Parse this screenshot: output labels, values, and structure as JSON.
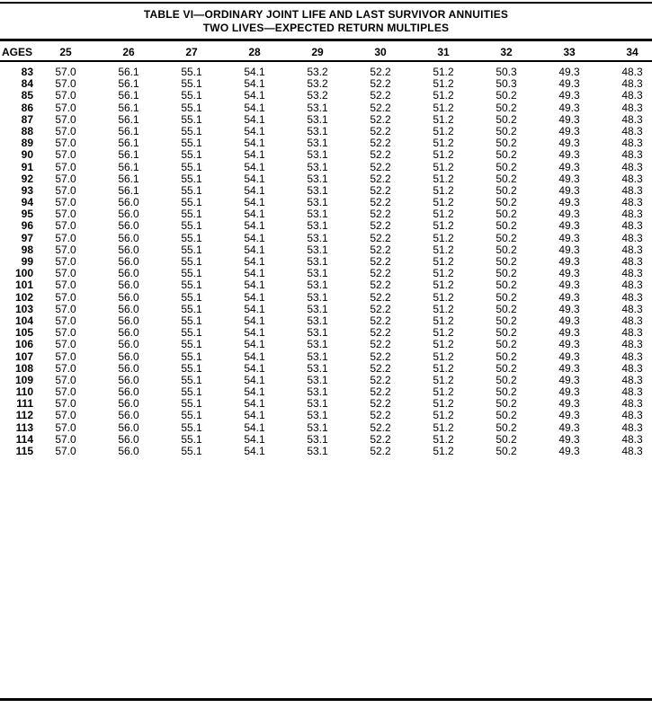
{
  "title": {
    "line1": "TABLE VI—ORDINARY JOINT LIFE AND LAST SURVIVOR ANNUITIES",
    "line2": "TWO LIVES—EXPECTED RETURN MULTIPLES"
  },
  "table": {
    "age_header": "AGES",
    "columns": [
      "25",
      "26",
      "27",
      "28",
      "29",
      "30",
      "31",
      "32",
      "33",
      "34"
    ],
    "rows": [
      {
        "age": "83",
        "values": [
          "57.0",
          "56.1",
          "55.1",
          "54.1",
          "53.2",
          "52.2",
          "51.2",
          "50.3",
          "49.3",
          "48.3"
        ]
      },
      {
        "age": "84",
        "values": [
          "57.0",
          "56.1",
          "55.1",
          "54.1",
          "53.2",
          "52.2",
          "51.2",
          "50.3",
          "49.3",
          "48.3"
        ]
      },
      {
        "age": "85",
        "values": [
          "57.0",
          "56.1",
          "55.1",
          "54.1",
          "53.2",
          "52.2",
          "51.2",
          "50.2",
          "49.3",
          "48.3"
        ]
      },
      {
        "age": "86",
        "values": [
          "57.0",
          "56.1",
          "55.1",
          "54.1",
          "53.1",
          "52.2",
          "51.2",
          "50.2",
          "49.3",
          "48.3"
        ]
      },
      {
        "age": "87",
        "values": [
          "57.0",
          "56.1",
          "55.1",
          "54.1",
          "53.1",
          "52.2",
          "51.2",
          "50.2",
          "49.3",
          "48.3"
        ]
      },
      {
        "age": "88",
        "values": [
          "57.0",
          "56.1",
          "55.1",
          "54.1",
          "53.1",
          "52.2",
          "51.2",
          "50.2",
          "49.3",
          "48.3"
        ]
      },
      {
        "age": "89",
        "values": [
          "57.0",
          "56.1",
          "55.1",
          "54.1",
          "53.1",
          "52.2",
          "51.2",
          "50.2",
          "49.3",
          "48.3"
        ]
      },
      {
        "age": "90",
        "values": [
          "57.0",
          "56.1",
          "55.1",
          "54.1",
          "53.1",
          "52.2",
          "51.2",
          "50.2",
          "49.3",
          "48.3"
        ]
      },
      {
        "age": "91",
        "values": [
          "57.0",
          "56.1",
          "55.1",
          "54.1",
          "53.1",
          "52.2",
          "51.2",
          "50.2",
          "49.3",
          "48.3"
        ]
      },
      {
        "age": "92",
        "values": [
          "57.0",
          "56.1",
          "55.1",
          "54.1",
          "53.1",
          "52.2",
          "51.2",
          "50.2",
          "49.3",
          "48.3"
        ]
      },
      {
        "age": "93",
        "values": [
          "57.0",
          "56.1",
          "55.1",
          "54.1",
          "53.1",
          "52.2",
          "51.2",
          "50.2",
          "49.3",
          "48.3"
        ]
      },
      {
        "age": "94",
        "values": [
          "57.0",
          "56.0",
          "55.1",
          "54.1",
          "53.1",
          "52.2",
          "51.2",
          "50.2",
          "49.3",
          "48.3"
        ]
      },
      {
        "age": "95",
        "values": [
          "57.0",
          "56.0",
          "55.1",
          "54.1",
          "53.1",
          "52.2",
          "51.2",
          "50.2",
          "49.3",
          "48.3"
        ]
      },
      {
        "age": "96",
        "values": [
          "57.0",
          "56.0",
          "55.1",
          "54.1",
          "53.1",
          "52.2",
          "51.2",
          "50.2",
          "49.3",
          "48.3"
        ]
      },
      {
        "age": "97",
        "values": [
          "57.0",
          "56.0",
          "55.1",
          "54.1",
          "53.1",
          "52.2",
          "51.2",
          "50.2",
          "49.3",
          "48.3"
        ]
      },
      {
        "age": "98",
        "values": [
          "57.0",
          "56.0",
          "55.1",
          "54.1",
          "53.1",
          "52.2",
          "51.2",
          "50.2",
          "49.3",
          "48.3"
        ]
      },
      {
        "age": "99",
        "values": [
          "57.0",
          "56.0",
          "55.1",
          "54.1",
          "53.1",
          "52.2",
          "51.2",
          "50.2",
          "49.3",
          "48.3"
        ]
      },
      {
        "age": "100",
        "values": [
          "57.0",
          "56.0",
          "55.1",
          "54.1",
          "53.1",
          "52.2",
          "51.2",
          "50.2",
          "49.3",
          "48.3"
        ]
      },
      {
        "age": "101",
        "values": [
          "57.0",
          "56.0",
          "55.1",
          "54.1",
          "53.1",
          "52.2",
          "51.2",
          "50.2",
          "49.3",
          "48.3"
        ]
      },
      {
        "age": "102",
        "values": [
          "57.0",
          "56.0",
          "55.1",
          "54.1",
          "53.1",
          "52.2",
          "51.2",
          "50.2",
          "49.3",
          "48.3"
        ]
      },
      {
        "age": "103",
        "values": [
          "57.0",
          "56.0",
          "55.1",
          "54.1",
          "53.1",
          "52.2",
          "51.2",
          "50.2",
          "49.3",
          "48.3"
        ]
      },
      {
        "age": "104",
        "values": [
          "57.0",
          "56.0",
          "55.1",
          "54.1",
          "53.1",
          "52.2",
          "51.2",
          "50.2",
          "49.3",
          "48.3"
        ]
      },
      {
        "age": "105",
        "values": [
          "57.0",
          "56.0",
          "55.1",
          "54.1",
          "53.1",
          "52.2",
          "51.2",
          "50.2",
          "49.3",
          "48.3"
        ]
      },
      {
        "age": "106",
        "values": [
          "57.0",
          "56.0",
          "55.1",
          "54.1",
          "53.1",
          "52.2",
          "51.2",
          "50.2",
          "49.3",
          "48.3"
        ]
      },
      {
        "age": "107",
        "values": [
          "57.0",
          "56.0",
          "55.1",
          "54.1",
          "53.1",
          "52.2",
          "51.2",
          "50.2",
          "49.3",
          "48.3"
        ]
      },
      {
        "age": "108",
        "values": [
          "57.0",
          "56.0",
          "55.1",
          "54.1",
          "53.1",
          "52.2",
          "51.2",
          "50.2",
          "49.3",
          "48.3"
        ]
      },
      {
        "age": "109",
        "values": [
          "57.0",
          "56.0",
          "55.1",
          "54.1",
          "53.1",
          "52.2",
          "51.2",
          "50.2",
          "49.3",
          "48.3"
        ]
      },
      {
        "age": "110",
        "values": [
          "57.0",
          "56.0",
          "55.1",
          "54.1",
          "53.1",
          "52.2",
          "51.2",
          "50.2",
          "49.3",
          "48.3"
        ]
      },
      {
        "age": "111",
        "values": [
          "57.0",
          "56.0",
          "55.1",
          "54.1",
          "53.1",
          "52.2",
          "51.2",
          "50.2",
          "49.3",
          "48.3"
        ]
      },
      {
        "age": "112",
        "values": [
          "57.0",
          "56.0",
          "55.1",
          "54.1",
          "53.1",
          "52.2",
          "51.2",
          "50.2",
          "49.3",
          "48.3"
        ]
      },
      {
        "age": "113",
        "values": [
          "57.0",
          "56.0",
          "55.1",
          "54.1",
          "53.1",
          "52.2",
          "51.2",
          "50.2",
          "49.3",
          "48.3"
        ]
      },
      {
        "age": "114",
        "values": [
          "57.0",
          "56.0",
          "55.1",
          "54.1",
          "53.1",
          "52.2",
          "51.2",
          "50.2",
          "49.3",
          "48.3"
        ]
      },
      {
        "age": "115",
        "values": [
          "57.0",
          "56.0",
          "55.1",
          "54.1",
          "53.1",
          "52.2",
          "51.2",
          "50.2",
          "49.3",
          "48.3"
        ]
      }
    ]
  },
  "colors": {
    "ink": "#000000",
    "paper": "#ffffff"
  }
}
